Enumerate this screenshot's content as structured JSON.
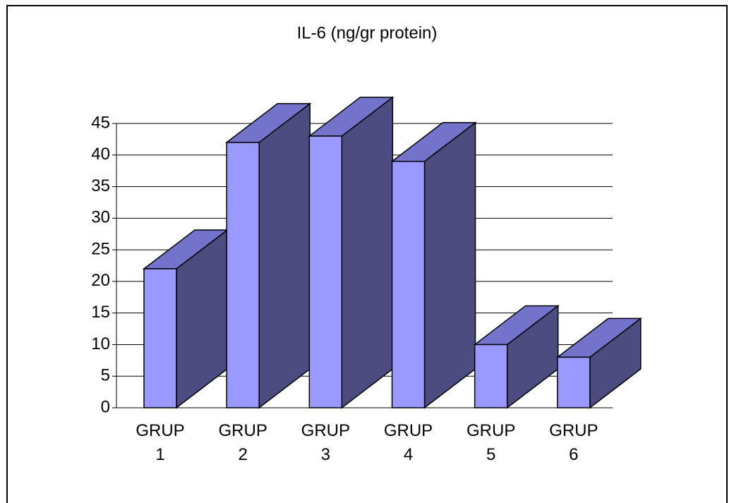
{
  "chart_data": {
    "type": "bar3d",
    "title": "IL-6 (ng/gr protein)",
    "categories": [
      "GRUP 1",
      "GRUP 2",
      "GRUP 3",
      "GRUP 4",
      "GRUP 5",
      "GRUP 6"
    ],
    "values": [
      22,
      42,
      43,
      39,
      10,
      8
    ],
    "color": "#9999ff",
    "top_color": "#7373cc",
    "side_color": "#4c4c80",
    "ylim": [
      0,
      45
    ],
    "yticks": [
      0,
      5,
      10,
      15,
      20,
      25,
      30,
      35,
      40,
      45
    ],
    "grid": true
  }
}
